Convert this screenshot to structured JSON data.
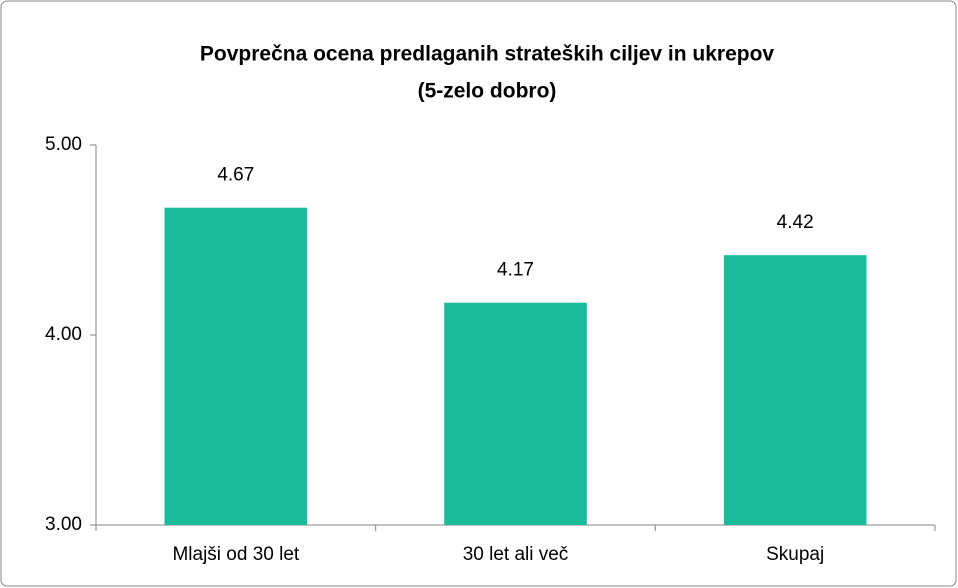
{
  "chart_data": {
    "type": "bar",
    "title": [
      "Povprečna ocena predlaganih strateških ciljev in ukrepov",
      "(5-zelo dobro)"
    ],
    "categories": [
      "Mlajši od 30 let",
      "30 let ali več",
      "Skupaj"
    ],
    "values": [
      4.67,
      4.17,
      4.42
    ],
    "color": "#1abc9c",
    "ylim": [
      3,
      5
    ],
    "yticks": [
      {
        "value": 3,
        "label": "3.00"
      },
      {
        "value": 4,
        "label": "4.00"
      },
      {
        "value": 5,
        "label": "5.00"
      }
    ],
    "grid": false
  }
}
